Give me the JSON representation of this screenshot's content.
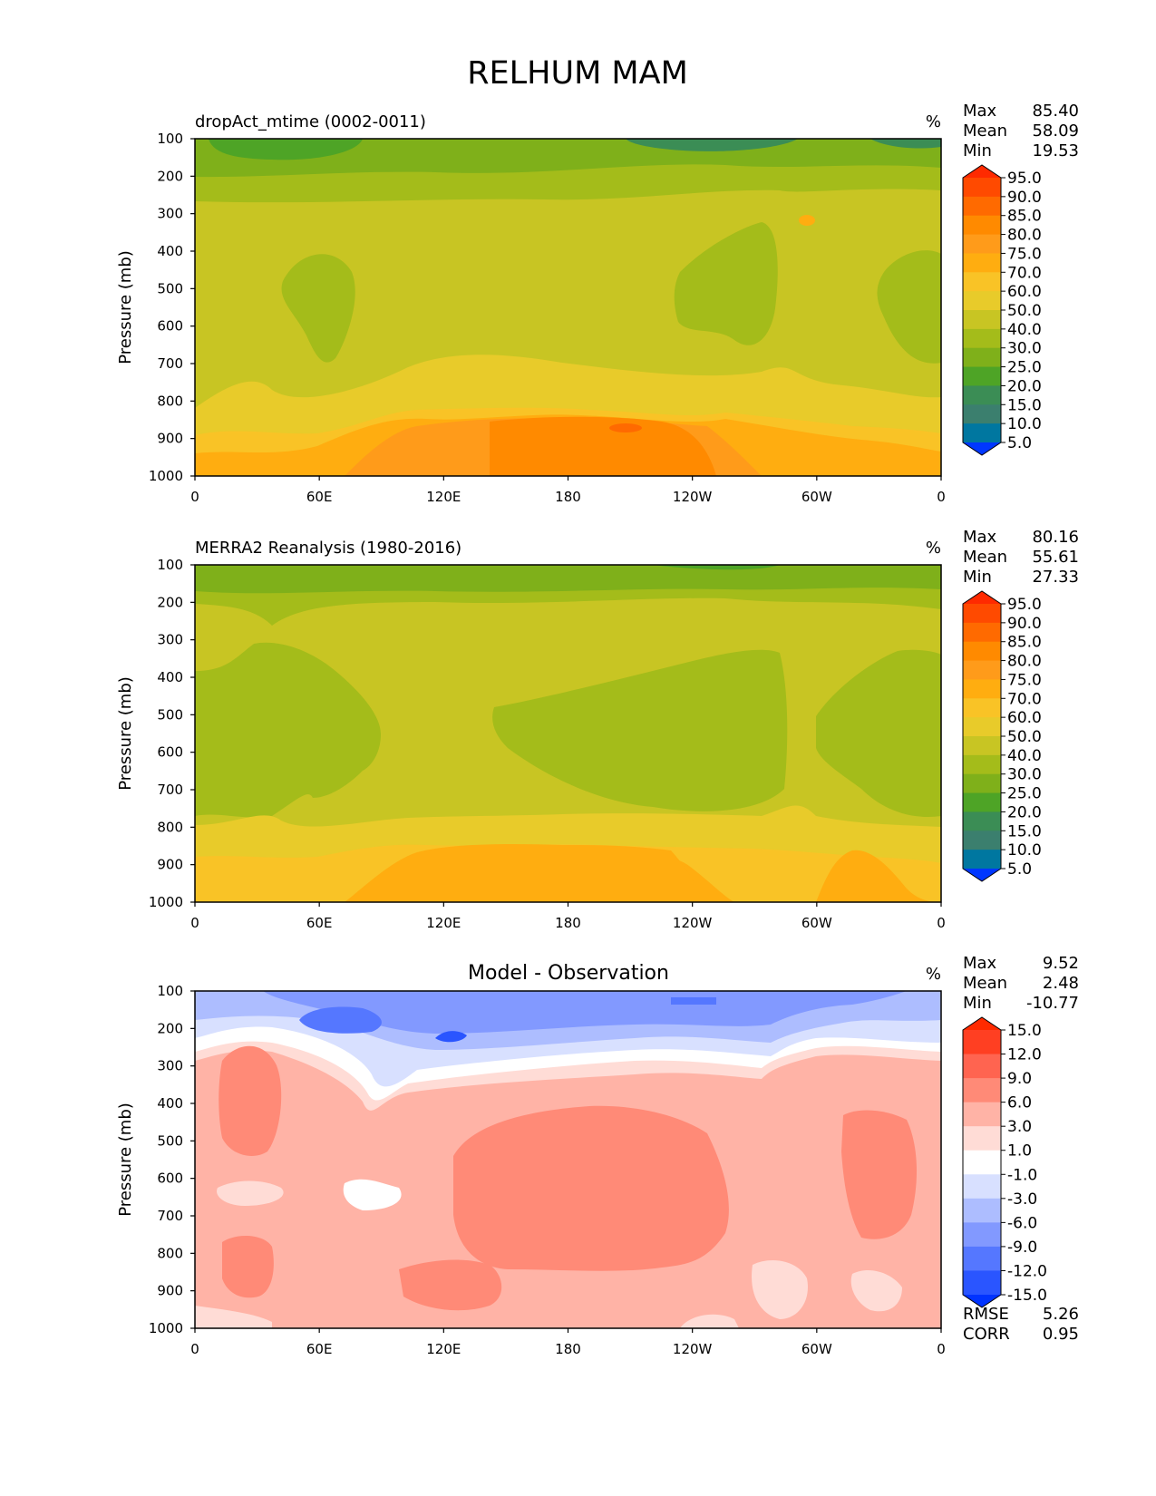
{
  "figure": {
    "title": "RELHUM MAM"
  },
  "chart_data": [
    {
      "type": "heatmap",
      "title": "dropAct_mtime (0002-0011)",
      "units": "%",
      "ylabel": "Pressure (mb)",
      "xlabel": "",
      "x_ticks": [
        "0",
        "60E",
        "120E",
        "180",
        "120W",
        "60W",
        "0"
      ],
      "y_ticks": [
        "100",
        "200",
        "300",
        "400",
        "500",
        "600",
        "700",
        "800",
        "900",
        "1000"
      ],
      "ylim": [
        100,
        1000
      ],
      "stats": [
        {
          "label": "Max",
          "value": "85.40"
        },
        {
          "label": "Mean",
          "value": "58.09"
        },
        {
          "label": "Min",
          "value": "19.53"
        }
      ],
      "colorbar": {
        "levels": [
          "95.0",
          "90.0",
          "85.0",
          "80.0",
          "75.0",
          "70.0",
          "60.0",
          "50.0",
          "40.0",
          "30.0",
          "25.0",
          "20.0",
          "15.0",
          "10.0",
          "5.0"
        ],
        "colors": [
          "#ff2a00",
          "#ff4a00",
          "#ff6a00",
          "#ff8a00",
          "#ff9b1a",
          "#ffad10",
          "#f9c326",
          "#e8cb2a",
          "#c8c523",
          "#a4bc1a",
          "#7fb01a",
          "#4ea426",
          "#3b8d55",
          "#3b7f6e",
          "#0077a0",
          "#0059d6",
          "#0037ff"
        ],
        "extend": "both"
      },
      "bands": [
        {
          "p_bottom": 1000,
          "p_top": 930,
          "value": "80-85"
        },
        {
          "p_bottom": 930,
          "p_top": 850,
          "value": "75-80"
        },
        {
          "p_bottom": 850,
          "p_top": 780,
          "value": "70-75"
        },
        {
          "p_bottom": 780,
          "p_top": 700,
          "value": "60-70"
        },
        {
          "p_bottom": 700,
          "p_top": 280,
          "value": "50-60"
        },
        {
          "p_bottom": 280,
          "p_top": 210,
          "value": "40-50"
        },
        {
          "p_bottom": 210,
          "p_top": 160,
          "value": "30-40"
        },
        {
          "p_bottom": 160,
          "p_top": 100,
          "value": "25-30"
        }
      ]
    },
    {
      "type": "heatmap",
      "title": "MERRA2 Reanalysis (1980-2016)",
      "units": "%",
      "ylabel": "Pressure (mb)",
      "xlabel": "",
      "x_ticks": [
        "0",
        "60E",
        "120E",
        "180",
        "120W",
        "60W",
        "0"
      ],
      "y_ticks": [
        "100",
        "200",
        "300",
        "400",
        "500",
        "600",
        "700",
        "800",
        "900",
        "1000"
      ],
      "ylim": [
        100,
        1000
      ],
      "stats": [
        {
          "label": "Max",
          "value": "80.16"
        },
        {
          "label": "Mean",
          "value": "55.61"
        },
        {
          "label": "Min",
          "value": "27.33"
        }
      ],
      "colorbar": {
        "levels": [
          "95.0",
          "90.0",
          "85.0",
          "80.0",
          "75.0",
          "70.0",
          "60.0",
          "50.0",
          "40.0",
          "30.0",
          "25.0",
          "20.0",
          "15.0",
          "10.0",
          "5.0"
        ],
        "colors": [
          "#ff2a00",
          "#ff4a00",
          "#ff6a00",
          "#ff8a00",
          "#ff9b1a",
          "#ffad10",
          "#f9c326",
          "#e8cb2a",
          "#c8c523",
          "#a4bc1a",
          "#7fb01a",
          "#4ea426",
          "#3b8d55",
          "#3b7f6e",
          "#0077a0",
          "#0059d6",
          "#0037ff"
        ],
        "extend": "both"
      },
      "bands": [
        {
          "p_bottom": 1000,
          "p_top": 950,
          "value": "75-80"
        },
        {
          "p_bottom": 950,
          "p_top": 860,
          "value": "70-75"
        },
        {
          "p_bottom": 860,
          "p_top": 780,
          "value": "60-70"
        },
        {
          "p_bottom": 780,
          "p_top": 230,
          "value": "50-60"
        },
        {
          "p_bottom": 230,
          "p_top": 160,
          "value": "40-50"
        },
        {
          "p_bottom": 160,
          "p_top": 100,
          "value": "30-40"
        }
      ]
    },
    {
      "type": "heatmap",
      "title": "Model - Observation",
      "units": "%",
      "ylabel": "Pressure (mb)",
      "xlabel": "",
      "x_ticks": [
        "0",
        "60E",
        "120E",
        "180",
        "120W",
        "60W",
        "0"
      ],
      "y_ticks": [
        "100",
        "200",
        "300",
        "400",
        "500",
        "600",
        "700",
        "800",
        "900",
        "1000"
      ],
      "ylim": [
        100,
        1000
      ],
      "stats": [
        {
          "label": "Max",
          "value": "9.52"
        },
        {
          "label": "Mean",
          "value": "2.48"
        },
        {
          "label": "Min",
          "value": "-10.77"
        }
      ],
      "extra_stats": [
        {
          "label": "RMSE",
          "value": "5.26"
        },
        {
          "label": "CORR",
          "value": "0.95"
        }
      ],
      "colorbar": {
        "levels": [
          "15.0",
          "12.0",
          "9.0",
          "6.0",
          "3.0",
          "1.0",
          "-1.0",
          "-3.0",
          "-6.0",
          "-9.0",
          "-12.0",
          "-15.0"
        ],
        "colors": [
          "#ff2a00",
          "#ff3f22",
          "#ff6450",
          "#ff8a77",
          "#ffb3a6",
          "#ffdcd6",
          "#ffffff",
          "#d8e0ff",
          "#adbdff",
          "#8299ff",
          "#5577ff",
          "#2a55ff",
          "#0033ff"
        ],
        "extend": "both"
      },
      "bands": [
        {
          "p_bottom": 1000,
          "p_top": 880,
          "value": "1-3"
        },
        {
          "p_bottom": 880,
          "p_top": 330,
          "value": "3-6"
        },
        {
          "p_bottom": 330,
          "p_top": 280,
          "value": "-1-1"
        },
        {
          "p_bottom": 280,
          "p_top": 240,
          "value": "-3--1"
        },
        {
          "p_bottom": 240,
          "p_top": 180,
          "value": "-6--3"
        },
        {
          "p_bottom": 180,
          "p_top": 100,
          "value": "-9--6"
        }
      ]
    }
  ]
}
